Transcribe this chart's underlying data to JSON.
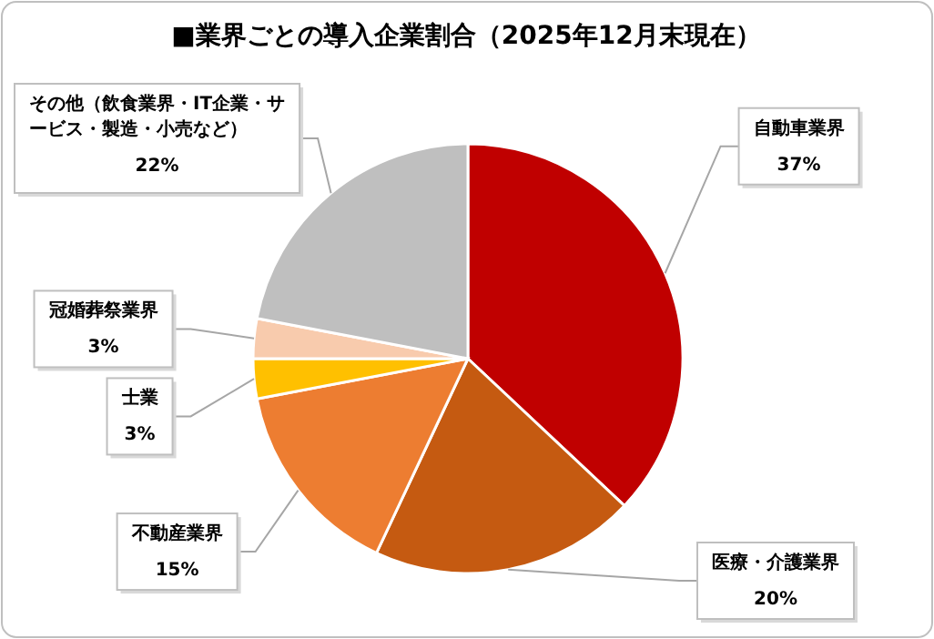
{
  "chart_data": {
    "type": "pie",
    "title": "■業界ごとの導入企業割合（2025年12月末現在）",
    "categories": [
      "自動車業界",
      "医療・介護業界",
      "不動産業界",
      "士業",
      "冠婚葬祭業界",
      "その他（飲食業界・IT企業・サービス・製造・小売など）"
    ],
    "values": [
      37,
      20,
      15,
      3,
      3,
      22
    ],
    "colors": [
      "#c00000",
      "#c55a11",
      "#ed7d31",
      "#ffc000",
      "#f8cbad",
      "#bfbfbf"
    ],
    "value_labels": [
      "37%",
      "20%",
      "15%",
      "3%",
      "3%",
      "22%"
    ]
  }
}
